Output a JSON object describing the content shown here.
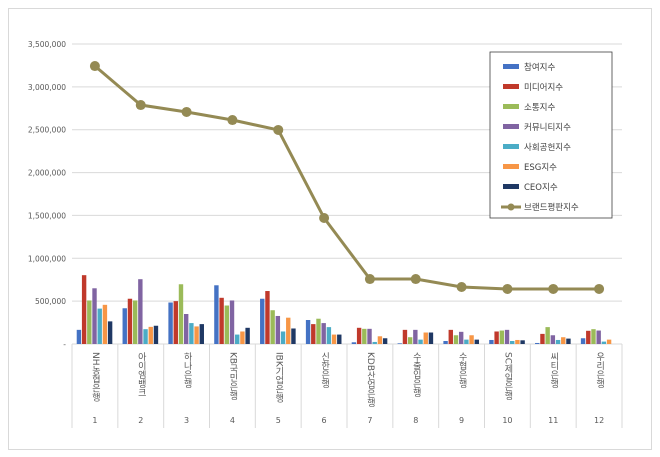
{
  "chart_data": {
    "type": "bar",
    "title": "",
    "xlabel": "",
    "ylabel": "",
    "ylim": [
      0,
      3500000
    ],
    "yticks": [
      "-",
      "500,000",
      "1,000,000",
      "1,500,000",
      "2,000,000",
      "2,500,000",
      "3,000,000",
      "3,500,000"
    ],
    "grid": true,
    "legend_position": "top-right",
    "ranks": [
      "1",
      "2",
      "3",
      "4",
      "5",
      "6",
      "7",
      "8",
      "9",
      "10",
      "11",
      "12"
    ],
    "categories": [
      "NH농협은행",
      "아이엠뱅크",
      "하나은행",
      "KB국민은행",
      "IBK기업은행",
      "신한은행",
      "KDB산업은행",
      "수출입은행",
      "수협은행",
      "SC제일은행",
      "씨티은행",
      "우리은행"
    ],
    "series": [
      {
        "name": "참여지수",
        "color": "#4472c4",
        "values": [
          165000,
          417000,
          484000,
          685000,
          528000,
          280000,
          20000,
          8000,
          35000,
          47000,
          12000,
          67000
        ]
      },
      {
        "name": "미디어지수",
        "color": "#c0392b",
        "values": [
          803000,
          528000,
          500000,
          539000,
          618000,
          232000,
          189000,
          165000,
          165000,
          146000,
          118000,
          154000
        ]
      },
      {
        "name": "소통지수",
        "color": "#9bbb59",
        "values": [
          508000,
          508000,
          697000,
          449000,
          394000,
          295000,
          177000,
          79000,
          102000,
          157000,
          197000,
          173000
        ]
      },
      {
        "name": "커뮤니티지수",
        "color": "#8064a2",
        "values": [
          650000,
          756000,
          350000,
          508000,
          327000,
          244000,
          177000,
          165000,
          142000,
          165000,
          102000,
          157000
        ]
      },
      {
        "name": "사회공헌지수",
        "color": "#4bacc6",
        "values": [
          413000,
          173000,
          244000,
          110000,
          146000,
          197000,
          24000,
          51000,
          51000,
          35000,
          47000,
          28000
        ]
      },
      {
        "name": "ESG지수",
        "color": "#f79646",
        "values": [
          457000,
          200000,
          205000,
          146000,
          307000,
          110000,
          90000,
          134000,
          102000,
          47000,
          79000,
          51000
        ]
      },
      {
        "name": "CEO지수",
        "color": "#1f3864",
        "values": [
          264000,
          213000,
          232000,
          189000,
          181000,
          110000,
          67000,
          134000,
          51000,
          43000,
          63000,
          0
        ]
      }
    ],
    "line": {
      "name": "브랜드평판지수",
      "color": "#948a54",
      "values": [
        3243000,
        2788000,
        2707000,
        2613000,
        2497000,
        1470000,
        758000,
        758000,
        665000,
        642000,
        642000,
        642000
      ]
    }
  }
}
